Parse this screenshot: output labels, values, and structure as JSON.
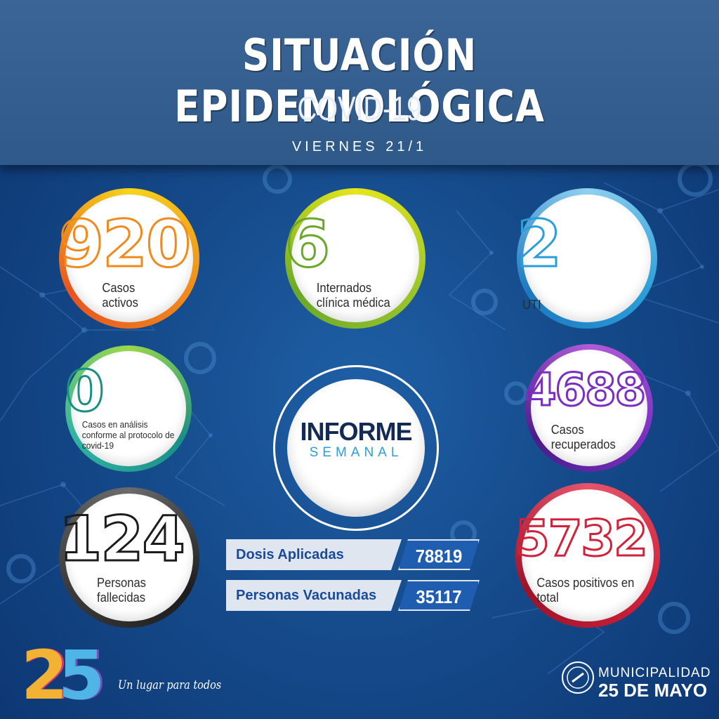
{
  "header": {
    "title": "SITUACIÓN EPIDEMIOLÓGICA",
    "subtitle": "COVID-19",
    "date": "VIERNES 21/1"
  },
  "stats": {
    "casos_activos": {
      "value": "920",
      "label": "Casos activos",
      "color": "#f08a1c"
    },
    "internados": {
      "value": "6",
      "label": "Internados clínica médica",
      "color": "#6aa829"
    },
    "uti": {
      "value": "2",
      "label": "UTI",
      "color": "#2a9ed8"
    },
    "en_analisis": {
      "value": "0",
      "label": "Casos en análisis conforme al protocolo de covid-19",
      "color": "#1a8f86"
    },
    "recuperados": {
      "value": "4688",
      "label": "Casos recuperados",
      "color": "#7a2fc0"
    },
    "fallecidas": {
      "value": "124",
      "label": "Personas fallecidas",
      "color": "#1c1c1c"
    },
    "positivos_total": {
      "value": "5732",
      "label": "Casos positivos en total",
      "color": "#d0223a"
    }
  },
  "informe": {
    "title": "INFORME",
    "subtitle": "SEMANAL"
  },
  "vacunacion": {
    "dosis_label": "Dosis Aplicadas",
    "dosis_value": "78819",
    "personas_label": "Personas Vacunadas",
    "personas_value": "35117"
  },
  "footer": {
    "logo": "25",
    "slogan": "Un lugar para todos",
    "municipality_name": "MUNICIPALIDAD",
    "municipality_city": "25 DE MAYO"
  },
  "colors": {
    "background": "#154a8a",
    "header": "#2f5989",
    "vaccine_value": "#1f5db0",
    "vaccine_label_bg": "#dfe6ef"
  }
}
